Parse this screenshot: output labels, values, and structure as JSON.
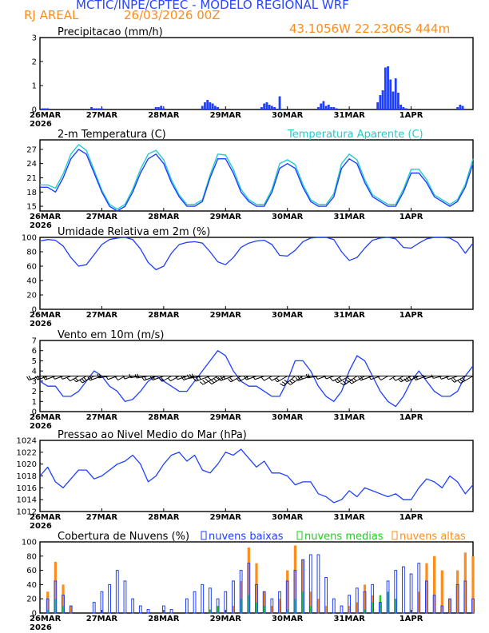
{
  "header": {
    "title": "MCTIC/INPE/CPTEC - MODELO REGIONAL WRF",
    "location": "RJ AREAL",
    "run": "26/03/2026 00Z",
    "coords": "43.1056W 22.2306S 444m"
  },
  "colors": {
    "title": "#2a45ff",
    "accent": "#ff8c1a",
    "cyan": "#22cccc",
    "blue": "#1f3fff",
    "green": "#22cc22",
    "orange": "#ff8c1a",
    "black": "#000000"
  },
  "x_axis": {
    "tick_labels": [
      "26MAR",
      "27MAR",
      "28MAR",
      "29MAR",
      "30MAR",
      "31MAR",
      "1APR"
    ],
    "year": "2026",
    "range_hours": [
      0,
      168
    ]
  },
  "chart_data": [
    {
      "type": "bar",
      "title": "Precipitacao (mm/h)",
      "ylim": [
        0,
        3
      ],
      "yticks": [
        "0",
        "1",
        "2",
        "3"
      ],
      "x_hours": [
        1,
        2,
        3,
        20,
        21,
        22,
        23,
        24,
        45,
        46,
        47,
        48,
        63,
        64,
        65,
        66,
        67,
        68,
        69,
        86,
        87,
        88,
        89,
        90,
        91,
        93,
        108,
        109,
        110,
        111,
        112,
        113,
        114,
        115,
        131,
        132,
        133,
        134,
        135,
        136,
        137,
        138,
        139,
        140,
        141,
        142,
        162,
        163,
        164
      ],
      "values": [
        0.05,
        0.05,
        0.05,
        0.1,
        0.05,
        0.05,
        0.05,
        0.05,
        0.1,
        0.1,
        0.15,
        0.05,
        0.15,
        0.3,
        0.4,
        0.3,
        0.25,
        0.15,
        0.1,
        0.1,
        0.25,
        0.3,
        0.2,
        0.15,
        0.1,
        0.55,
        0.1,
        0.25,
        0.35,
        0.15,
        0.2,
        0.1,
        0.1,
        0.05,
        0.3,
        0.6,
        0.8,
        1.75,
        1.8,
        1.25,
        0.75,
        1.3,
        0.7,
        0.2,
        0.1,
        0.05,
        0.1,
        0.2,
        0.15
      ]
    },
    {
      "type": "line",
      "title": "2-m Temperatura (C)",
      "ylim": [
        14,
        29
      ],
      "yticks": [
        "15",
        "18",
        "21",
        "24",
        "27"
      ],
      "x_hours": [
        0,
        3,
        6,
        9,
        12,
        15,
        18,
        21,
        24,
        27,
        30,
        33,
        36,
        39,
        42,
        45,
        48,
        51,
        54,
        57,
        60,
        63,
        66,
        69,
        72,
        75,
        78,
        81,
        84,
        87,
        90,
        93,
        96,
        99,
        102,
        105,
        108,
        111,
        114,
        117,
        120,
        123,
        126,
        129,
        132,
        135,
        138,
        141,
        144,
        147,
        150,
        153,
        156,
        159,
        162,
        165,
        168
      ],
      "series": [
        {
          "name": "2-m Temperatura (C)",
          "values": [
            19,
            19,
            18,
            21,
            25,
            27,
            26,
            22,
            18,
            15,
            14,
            15,
            18,
            22,
            25,
            26,
            24,
            20,
            17,
            15,
            15,
            16,
            21,
            25,
            25,
            22,
            18,
            16,
            15,
            15,
            18,
            23,
            24,
            23,
            19,
            16,
            15,
            15,
            17,
            23,
            25,
            24,
            20,
            17,
            16,
            15,
            15,
            18,
            22,
            22,
            20,
            17,
            16,
            15,
            16,
            19,
            24
          ]
        },
        {
          "name": "Temperatura Aparente (C)",
          "values": [
            19.5,
            19.5,
            18.8,
            21.8,
            26,
            28,
            26.8,
            22.6,
            18.4,
            15.4,
            14.4,
            15.4,
            18.6,
            22.8,
            26,
            26.8,
            24.8,
            20.6,
            17.4,
            15.4,
            15.4,
            16.4,
            21.6,
            26,
            25.8,
            22.8,
            18.6,
            16.4,
            15.4,
            15.4,
            18.6,
            24,
            24.8,
            23.8,
            19.6,
            16.4,
            15.4,
            15.4,
            17.6,
            24,
            26,
            24.8,
            20.6,
            17.4,
            16.4,
            15.4,
            15.4,
            18.6,
            22.8,
            22.8,
            20.6,
            17.4,
            16.4,
            15.4,
            16.4,
            19.6,
            25
          ]
        }
      ],
      "legend": "Temperatura Aparente (C)"
    },
    {
      "type": "line",
      "title": "Umidade Relativa em 2m (%)",
      "ylim": [
        0,
        100
      ],
      "yticks": [
        "0",
        "20",
        "40",
        "60",
        "80",
        "100"
      ],
      "x_hours": [
        0,
        3,
        6,
        9,
        12,
        15,
        18,
        21,
        24,
        27,
        30,
        33,
        36,
        39,
        42,
        45,
        48,
        51,
        54,
        57,
        60,
        63,
        66,
        69,
        72,
        75,
        78,
        81,
        84,
        87,
        90,
        93,
        96,
        99,
        102,
        105,
        108,
        111,
        114,
        117,
        120,
        123,
        126,
        129,
        132,
        135,
        138,
        141,
        144,
        147,
        150,
        153,
        156,
        159,
        162,
        165,
        168
      ],
      "values": [
        95,
        97,
        96,
        88,
        72,
        60,
        62,
        76,
        90,
        97,
        99,
        100,
        97,
        84,
        65,
        55,
        60,
        78,
        90,
        93,
        94,
        92,
        80,
        66,
        62,
        72,
        86,
        92,
        95,
        96,
        90,
        75,
        74,
        82,
        94,
        99,
        100,
        100,
        97,
        80,
        68,
        72,
        85,
        96,
        99,
        100,
        98,
        86,
        85,
        92,
        98,
        100,
        100,
        99,
        93,
        78,
        92
      ]
    },
    {
      "type": "line",
      "title": "Vento em 10m (m/s)",
      "ylim": [
        0,
        7
      ],
      "yticks": [
        "0",
        "1",
        "2",
        "3",
        "4",
        "5",
        "6",
        "7"
      ],
      "x_hours": [
        0,
        3,
        6,
        9,
        12,
        15,
        18,
        21,
        24,
        27,
        30,
        33,
        36,
        39,
        42,
        45,
        48,
        51,
        54,
        57,
        60,
        63,
        66,
        69,
        72,
        75,
        78,
        81,
        84,
        87,
        90,
        93,
        96,
        99,
        102,
        105,
        108,
        111,
        114,
        117,
        120,
        123,
        126,
        129,
        132,
        135,
        138,
        141,
        144,
        147,
        150,
        153,
        156,
        159,
        162,
        165,
        168
      ],
      "values": [
        3,
        2.5,
        2.5,
        1.5,
        1.5,
        2,
        3,
        4,
        3.5,
        2.5,
        2,
        1,
        1.2,
        2,
        3,
        3.5,
        3,
        2.5,
        2,
        2,
        3,
        4,
        5,
        6,
        5.5,
        4,
        3,
        2.5,
        2.5,
        2,
        1.5,
        1.5,
        3,
        5,
        5,
        4,
        2.5,
        1.5,
        1,
        2,
        4,
        5.5,
        5,
        3.5,
        2,
        1,
        0.5,
        1.5,
        3,
        4,
        3,
        2,
        1.5,
        1.5,
        2,
        3.5,
        4.5
      ],
      "barb_direction_deg": [
        250,
        250,
        250,
        250,
        250,
        240,
        240,
        240,
        250,
        260,
        250,
        240,
        250,
        260,
        260,
        250,
        250,
        240,
        240,
        250,
        250,
        260,
        250,
        240,
        240,
        250,
        240,
        240,
        250,
        250,
        240,
        240,
        240,
        230,
        235,
        250,
        260,
        250,
        250,
        240,
        240,
        235,
        240,
        250,
        250,
        240,
        240,
        240,
        240,
        245,
        250,
        255,
        255,
        250,
        250,
        240,
        240
      ]
    },
    {
      "type": "line",
      "title": "Pressao ao Nivel Medio do Mar (hPa)",
      "ylim": [
        1012,
        1024
      ],
      "yticks": [
        "1012",
        "1014",
        "1016",
        "1018",
        "1020",
        "1022",
        "1024"
      ],
      "x_hours": [
        0,
        3,
        6,
        9,
        12,
        15,
        18,
        21,
        24,
        27,
        30,
        33,
        36,
        39,
        42,
        45,
        48,
        51,
        54,
        57,
        60,
        63,
        66,
        69,
        72,
        75,
        78,
        81,
        84,
        87,
        90,
        93,
        96,
        99,
        102,
        105,
        108,
        111,
        114,
        117,
        120,
        123,
        126,
        129,
        132,
        135,
        138,
        141,
        144,
        147,
        150,
        153,
        156,
        159,
        162,
        165,
        168
      ],
      "values": [
        1018,
        1019.5,
        1017,
        1016,
        1017.5,
        1019,
        1019,
        1017.5,
        1018,
        1019,
        1020,
        1020.5,
        1021.5,
        1020,
        1017,
        1018,
        1020,
        1021.5,
        1022,
        1020.5,
        1021.5,
        1019,
        1018.5,
        1020,
        1022,
        1021.5,
        1022.5,
        1021,
        1019.5,
        1020.5,
        1018.5,
        1018.5,
        1018,
        1016.5,
        1017,
        1017,
        1015,
        1014.5,
        1013.5,
        1014,
        1015.5,
        1014.5,
        1016,
        1015.5,
        1015,
        1014.5,
        1015,
        1014,
        1014,
        1016,
        1017.5,
        1017,
        1016,
        1018,
        1017,
        1015,
        1016.5
      ]
    },
    {
      "type": "bar",
      "title": "Cobertura de Nuvens (%)",
      "ylim": [
        0,
        100
      ],
      "yticks": [
        "0",
        "20",
        "40",
        "60",
        "80",
        "100"
      ],
      "legend": [
        "nuvens baixas",
        "nuvens medias",
        "nuvens altas"
      ],
      "x_hours": [
        0,
        3,
        6,
        9,
        12,
        15,
        18,
        21,
        24,
        27,
        30,
        33,
        36,
        39,
        42,
        45,
        48,
        51,
        54,
        57,
        60,
        63,
        66,
        69,
        72,
        75,
        78,
        81,
        84,
        87,
        90,
        93,
        96,
        99,
        102,
        105,
        108,
        111,
        114,
        117,
        120,
        123,
        126,
        129,
        132,
        135,
        138,
        141,
        144,
        147,
        150,
        153,
        156,
        159,
        162,
        165,
        168
      ],
      "series": [
        {
          "name": "nuvens baixas",
          "values": [
            0,
            20,
            45,
            25,
            10,
            0,
            0,
            15,
            30,
            40,
            60,
            45,
            20,
            10,
            5,
            0,
            10,
            5,
            0,
            20,
            30,
            40,
            35,
            20,
            30,
            45,
            60,
            70,
            40,
            30,
            20,
            30,
            45,
            60,
            75,
            82,
            82,
            50,
            20,
            10,
            25,
            35,
            30,
            40,
            15,
            45,
            60,
            65,
            55,
            70,
            45,
            25,
            10,
            20,
            40,
            45,
            20
          ]
        },
        {
          "name": "nuvens medias",
          "values": [
            0,
            5,
            20,
            10,
            0,
            0,
            0,
            0,
            0,
            0,
            0,
            0,
            0,
            0,
            0,
            0,
            0,
            0,
            0,
            0,
            0,
            0,
            5,
            10,
            0,
            0,
            20,
            25,
            15,
            10,
            0,
            0,
            5,
            20,
            30,
            10,
            0,
            0,
            0,
            0,
            0,
            0,
            5,
            15,
            25,
            30,
            20,
            0,
            0,
            0,
            0,
            0,
            0,
            0,
            0,
            0,
            0
          ]
        },
        {
          "name": "nuvens altas",
          "values": [
            0,
            30,
            72,
            40,
            10,
            0,
            0,
            0,
            0,
            0,
            0,
            0,
            0,
            0,
            0,
            0,
            0,
            0,
            0,
            0,
            0,
            0,
            0,
            0,
            0,
            10,
            45,
            92,
            70,
            30,
            10,
            20,
            60,
            95,
            75,
            30,
            20,
            10,
            0,
            0,
            10,
            15,
            40,
            25,
            15,
            10,
            0,
            0,
            0,
            30,
            70,
            80,
            60,
            20,
            60,
            85,
            80
          ]
        }
      ]
    }
  ]
}
